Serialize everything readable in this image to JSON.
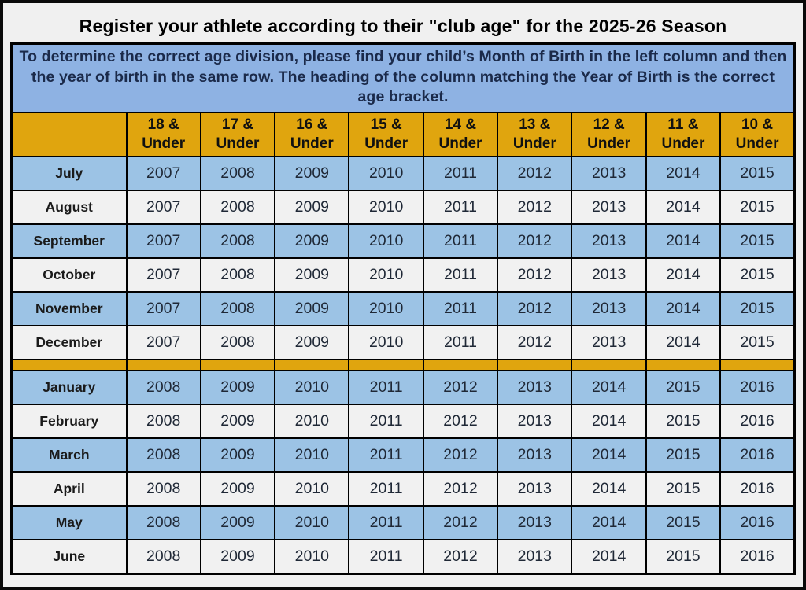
{
  "title": "Register your athlete according to their \"club age\" for the 2025-26 Season",
  "instructions": "To determine the correct age division, please find your child’s Month of Birth in the left column and then the year of birth in the same row. The heading of the column matching the Year of Birth is the correct age bracket.",
  "table": {
    "corner_label": "",
    "column_headers": [
      "18 & Under",
      "17 & Under",
      "16 & Under",
      "15 & Under",
      "14 & Under",
      "13 & Under",
      "12 & Under",
      "11 & Under",
      "10 & Under"
    ],
    "rows": [
      {
        "type": "data",
        "shade": "blue",
        "month": "July",
        "years": [
          "2007",
          "2008",
          "2009",
          "2010",
          "2011",
          "2012",
          "2013",
          "2014",
          "2015"
        ]
      },
      {
        "type": "data",
        "shade": "white",
        "month": "August",
        "years": [
          "2007",
          "2008",
          "2009",
          "2010",
          "2011",
          "2012",
          "2013",
          "2014",
          "2015"
        ]
      },
      {
        "type": "data",
        "shade": "blue",
        "month": "September",
        "years": [
          "2007",
          "2008",
          "2009",
          "2010",
          "2011",
          "2012",
          "2013",
          "2014",
          "2015"
        ]
      },
      {
        "type": "data",
        "shade": "white",
        "month": "October",
        "years": [
          "2007",
          "2008",
          "2009",
          "2010",
          "2011",
          "2012",
          "2013",
          "2014",
          "2015"
        ]
      },
      {
        "type": "data",
        "shade": "blue",
        "month": "November",
        "years": [
          "2007",
          "2008",
          "2009",
          "2010",
          "2011",
          "2012",
          "2013",
          "2014",
          "2015"
        ]
      },
      {
        "type": "data",
        "shade": "white",
        "month": "December",
        "years": [
          "2007",
          "2008",
          "2009",
          "2010",
          "2011",
          "2012",
          "2013",
          "2014",
          "2015"
        ]
      },
      {
        "type": "separator"
      },
      {
        "type": "data",
        "shade": "blue",
        "month": "January",
        "years": [
          "2008",
          "2009",
          "2010",
          "2011",
          "2012",
          "2013",
          "2014",
          "2015",
          "2016"
        ]
      },
      {
        "type": "data",
        "shade": "white",
        "month": "February",
        "years": [
          "2008",
          "2009",
          "2010",
          "2011",
          "2012",
          "2013",
          "2014",
          "2015",
          "2016"
        ]
      },
      {
        "type": "data",
        "shade": "blue",
        "month": "March",
        "years": [
          "2008",
          "2009",
          "2010",
          "2011",
          "2012",
          "2013",
          "2014",
          "2015",
          "2016"
        ]
      },
      {
        "type": "data",
        "shade": "white",
        "month": "April",
        "years": [
          "2008",
          "2009",
          "2010",
          "2011",
          "2012",
          "2013",
          "2014",
          "2015",
          "2016"
        ]
      },
      {
        "type": "data",
        "shade": "blue",
        "month": "May",
        "years": [
          "2008",
          "2009",
          "2010",
          "2011",
          "2012",
          "2013",
          "2014",
          "2015",
          "2016"
        ]
      },
      {
        "type": "data",
        "shade": "white",
        "month": "June",
        "years": [
          "2008",
          "2009",
          "2010",
          "2011",
          "2012",
          "2013",
          "2014",
          "2015",
          "2016"
        ]
      }
    ]
  },
  "colors": {
    "header_orange": "#E0A50E",
    "instruction_blue": "#8EB2E3",
    "row_blue": "#9CC3E5",
    "row_white": "#F1F1F1",
    "instruction_text": "#1B2A4A",
    "table_text": "#1A1A1A",
    "year_text": "#1F2836",
    "background": "#F0F0F0",
    "border": "#000000"
  }
}
